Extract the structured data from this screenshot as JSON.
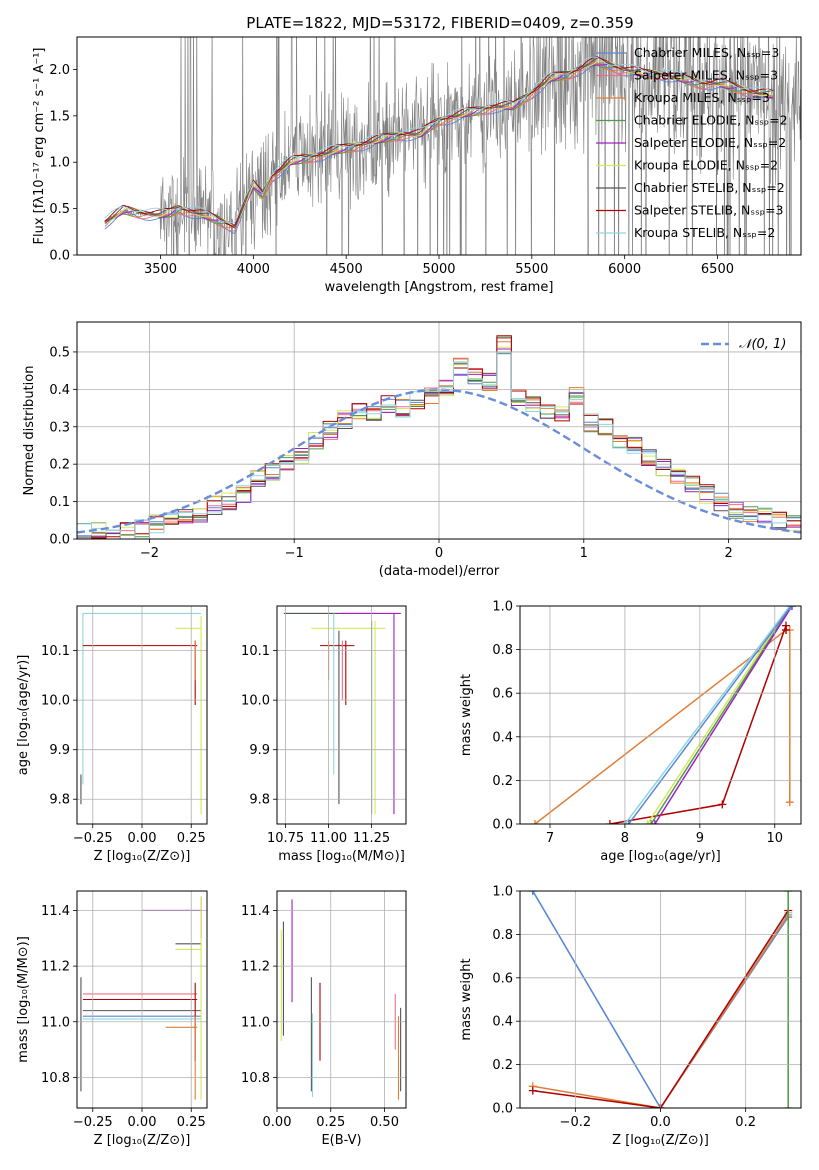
{
  "title": "PLATE=1822, MJD=53172, FIBERID=0409, z=0.359",
  "colors": {
    "chabrier_miles": "#5b86d6",
    "salpeter_miles": "#ef6f8a",
    "kroupa_miles": "#e07f35",
    "chabrier_elodie": "#4f9a4f",
    "salpeter_elodie": "#a020c0",
    "kroupa_elodie": "#d6e85a",
    "chabrier_stelib": "#555555",
    "salpeter_stelib": "#b00000",
    "kroupa_stelib": "#8fd5df",
    "data": "#808080",
    "normal": "#6a8dd8"
  },
  "chart_data": [
    {
      "id": "spectrum",
      "type": "line",
      "xlabel": "wavelength [Angstrom, rest frame]",
      "ylabel": "Flux [fλ10⁻¹⁷ erg cm⁻² s⁻¹ A⁻¹]",
      "xlim": [
        3050,
        6950
      ],
      "ylim": [
        0,
        2.35
      ],
      "xticks": [
        "3500",
        "4000",
        "4500",
        "5000",
        "5500",
        "6000",
        "6500"
      ],
      "yticks": [
        "0.0",
        "0.5",
        "1.0",
        "1.5",
        "2.0"
      ],
      "legend_placement": "top-right",
      "continuum": {
        "x": [
          3200,
          3300,
          3400,
          3500,
          3550,
          3600,
          3700,
          3800,
          3900,
          4000,
          4050,
          4100,
          4200,
          4300,
          4400,
          4500,
          4600,
          4700,
          4800,
          4900,
          5000,
          5100,
          5200,
          5300,
          5400,
          5500,
          5600,
          5700,
          5800,
          5850,
          5900,
          6000,
          6100,
          6200,
          6300,
          6400,
          6500,
          6600,
          6700,
          6800
        ],
        "y": [
          0.35,
          0.48,
          0.45,
          0.43,
          0.45,
          0.5,
          0.45,
          0.38,
          0.3,
          0.75,
          0.65,
          0.85,
          1.0,
          1.05,
          1.1,
          1.15,
          1.2,
          1.25,
          1.3,
          1.3,
          1.45,
          1.5,
          1.55,
          1.6,
          1.6,
          1.75,
          1.9,
          1.95,
          2.05,
          2.08,
          2.05,
          2.0,
          1.95,
          1.95,
          1.9,
          1.85,
          1.85,
          1.8,
          1.75,
          1.72
        ]
      },
      "data_range": [
        3200,
        6950
      ],
      "series": [
        {
          "name": "Chabrier MILES, N_SSP=3",
          "key": "chabrier_miles"
        },
        {
          "name": "Salpeter MILES, N_SSP=3",
          "key": "salpeter_miles"
        },
        {
          "name": "Kroupa MILES, N_SSP=3",
          "key": "kroupa_miles"
        },
        {
          "name": "Chabrier ELODIE, N_SSP=2",
          "key": "chabrier_elodie"
        },
        {
          "name": "Salpeter ELODIE, N_SSP=2",
          "key": "salpeter_elodie"
        },
        {
          "name": "Kroupa ELODIE, N_SSP=2",
          "key": "kroupa_elodie"
        },
        {
          "name": "Chabrier STELIB, N_SSP=2",
          "key": "chabrier_stelib"
        },
        {
          "name": "Salpeter STELIB, N_SSP=3",
          "key": "salpeter_stelib"
        },
        {
          "name": "Kroupa STELIB, N_SSP=2",
          "key": "kroupa_stelib"
        }
      ]
    },
    {
      "id": "residuals",
      "type": "line",
      "xlabel": "(data-model)/error",
      "ylabel": "Normed distribution",
      "xlim": [
        -2.5,
        2.5
      ],
      "ylim": [
        0,
        0.58
      ],
      "xticks": [
        "−2",
        "−1",
        "0",
        "1",
        "2"
      ],
      "yticks": [
        "0.0",
        "0.1",
        "0.2",
        "0.3",
        "0.4",
        "0.5"
      ],
      "legend_placement": "top-right",
      "normal_label": "𝒩(0, 1)",
      "bin_edges": [
        -2.5,
        -2.4,
        -2.3,
        -2.2,
        -2.1,
        -2.0,
        -1.9,
        -1.8,
        -1.7,
        -1.6,
        -1.5,
        -1.4,
        -1.3,
        -1.2,
        -1.1,
        -1.0,
        -0.9,
        -0.8,
        -0.7,
        -0.6,
        -0.5,
        -0.4,
        -0.3,
        -0.2,
        -0.1,
        0.0,
        0.1,
        0.2,
        0.3,
        0.4,
        0.5,
        0.6,
        0.7,
        0.8,
        0.9,
        1.0,
        1.1,
        1.2,
        1.3,
        1.4,
        1.5,
        1.6,
        1.7,
        1.8,
        1.9,
        2.0,
        2.1,
        2.2,
        2.3,
        2.4,
        2.5
      ],
      "hist_base": [
        0.02,
        0.02,
        0.01,
        0.02,
        0.03,
        0.04,
        0.05,
        0.06,
        0.07,
        0.09,
        0.1,
        0.12,
        0.16,
        0.18,
        0.2,
        0.22,
        0.26,
        0.29,
        0.32,
        0.34,
        0.33,
        0.36,
        0.35,
        0.37,
        0.38,
        0.4,
        0.46,
        0.44,
        0.42,
        0.52,
        0.38,
        0.36,
        0.34,
        0.33,
        0.38,
        0.31,
        0.3,
        0.26,
        0.25,
        0.22,
        0.19,
        0.17,
        0.15,
        0.12,
        0.1,
        0.08,
        0.07,
        0.06,
        0.05,
        0.04
      ]
    },
    {
      "id": "age_vs_Z",
      "type": "scatter",
      "xlabel": "Z [log₁₀(Z/Z⊙)]",
      "ylabel": "age  [log₁₀(age/yr)]",
      "xlim": [
        -0.33,
        0.33
      ],
      "ylim": [
        9.75,
        10.19
      ],
      "xticks": [
        "−0.25",
        "0.00",
        "0.25"
      ],
      "yticks": [
        "9.8",
        "9.9",
        "10.0",
        "10.1"
      ],
      "segments": [
        {
          "key": "kroupa_stelib",
          "x": [
            -0.3,
            0.3
          ],
          "y": [
            10.175,
            10.175
          ]
        },
        {
          "key": "kroupa_stelib",
          "x": [
            -0.3,
            -0.3
          ],
          "y": [
            9.83,
            10.175
          ]
        },
        {
          "key": "chabrier_stelib",
          "x": [
            -0.31,
            -0.31
          ],
          "y": [
            9.79,
            9.85
          ]
        },
        {
          "key": "kroupa_elodie",
          "x": [
            0.17,
            0.3
          ],
          "y": [
            10.145,
            10.145
          ]
        },
        {
          "key": "kroupa_elodie",
          "x": [
            0.3,
            0.3
          ],
          "y": [
            9.77,
            10.17
          ]
        },
        {
          "key": "salpeter_stelib",
          "x": [
            -0.3,
            0.28
          ],
          "y": [
            10.11,
            10.11
          ]
        },
        {
          "key": "salpeter_stelib",
          "x": [
            0.27,
            0.27
          ],
          "y": [
            9.99,
            10.12
          ]
        },
        {
          "key": "kroupa_miles",
          "x": [
            0.27,
            0.27
          ],
          "y": [
            10.04,
            10.12
          ]
        }
      ]
    },
    {
      "id": "age_vs_mass",
      "type": "scatter",
      "xlabel": "mass [log₁₀(M/M⊙)]",
      "ylabel": "",
      "xlim": [
        10.7,
        11.45
      ],
      "ylim": [
        9.75,
        10.19
      ],
      "xticks": [
        "10.75",
        "11.00",
        "11.25"
      ],
      "yticks": [
        "9.8",
        "9.9",
        "10.0",
        "10.1"
      ],
      "segments": [
        {
          "key": "kroupa_stelib",
          "x": [
            10.74,
            11.06
          ],
          "y": [
            10.175,
            10.175
          ]
        },
        {
          "key": "chabrier_stelib",
          "x": [
            10.74,
            11.28
          ],
          "y": [
            10.175,
            10.175
          ]
        },
        {
          "key": "salpeter_elodie",
          "x": [
            11.06,
            11.42
          ],
          "y": [
            10.175,
            10.175
          ]
        },
        {
          "key": "salpeter_elodie",
          "x": [
            11.38,
            11.38
          ],
          "y": [
            9.77,
            10.175
          ]
        },
        {
          "key": "kroupa_elodie",
          "x": [
            10.9,
            11.33
          ],
          "y": [
            10.145,
            10.145
          ]
        },
        {
          "key": "kroupa_elodie",
          "x": [
            11.27,
            11.27
          ],
          "y": [
            9.77,
            10.16
          ]
        },
        {
          "key": "chabrier_elodie",
          "x": [
            11.25,
            11.25
          ],
          "y": [
            9.77,
            10.16
          ]
        },
        {
          "key": "salpeter_stelib",
          "x": [
            10.95,
            11.15
          ],
          "y": [
            10.11,
            10.11
          ]
        },
        {
          "key": "salpeter_stelib",
          "x": [
            11.1,
            11.1
          ],
          "y": [
            9.99,
            10.12
          ]
        },
        {
          "key": "kroupa_miles",
          "x": [
            11.0,
            11.0
          ],
          "y": [
            10.04,
            10.12
          ]
        },
        {
          "key": "salpeter_miles",
          "x": [
            11.08,
            11.08
          ],
          "y": [
            10.0,
            10.12
          ]
        },
        {
          "key": "kroupa_stelib",
          "x": [
            11.03,
            11.03
          ],
          "y": [
            9.85,
            10.175
          ]
        },
        {
          "key": "chabrier_stelib",
          "x": [
            11.06,
            11.06
          ],
          "y": [
            9.79,
            10.14
          ]
        }
      ]
    },
    {
      "id": "weight_vs_age",
      "type": "line",
      "xlabel": "age  [log₁₀(age/yr)]",
      "ylabel": "mass weight",
      "xlim": [
        6.6,
        10.35
      ],
      "ylim": [
        0,
        1.0
      ],
      "xticks": [
        "7",
        "8",
        "9",
        "10"
      ],
      "yticks": [
        "0.0",
        "0.2",
        "0.4",
        "0.6",
        "0.8",
        "1.0"
      ],
      "series": [
        {
          "key": "kroupa_miles",
          "x": [
            6.8,
            10.15,
            10.2,
            10.2
          ],
          "y": [
            0.0,
            0.89,
            0.89,
            0.1
          ]
        },
        {
          "key": "salpeter_stelib",
          "x": [
            7.8,
            9.3,
            10.15,
            10.15
          ],
          "y": [
            0.0,
            0.09,
            0.91,
            0.89
          ]
        },
        {
          "key": "kroupa_elodie",
          "x": [
            8.3,
            10.2
          ],
          "y": [
            0.0,
            1.0
          ]
        },
        {
          "key": "chabrier_elodie",
          "x": [
            8.35,
            10.22
          ],
          "y": [
            0.0,
            1.0
          ]
        },
        {
          "key": "salpeter_elodie",
          "x": [
            8.4,
            10.23
          ],
          "y": [
            0.0,
            1.0
          ]
        },
        {
          "key": "kroupa_stelib",
          "x": [
            8.0,
            10.2
          ],
          "y": [
            0.0,
            1.0
          ]
        },
        {
          "key": "chabrier_miles",
          "x": [
            8.05,
            10.22
          ],
          "y": [
            0.0,
            1.0
          ]
        }
      ]
    },
    {
      "id": "mass_vs_Z",
      "type": "scatter",
      "xlabel": "Z [log₁₀(Z/Z⊙)]",
      "ylabel": "mass [log₁₀(M/M⊙)]",
      "xlim": [
        -0.33,
        0.33
      ],
      "ylim": [
        10.69,
        11.47
      ],
      "xticks": [
        "−0.25",
        "0.00",
        "0.25"
      ],
      "yticks": [
        "10.8",
        "11.0",
        "11.2",
        "11.4"
      ],
      "segments": [
        {
          "key": "salpeter_elodie",
          "x": [
            0.0,
            0.3
          ],
          "y": [
            11.4,
            11.4
          ]
        },
        {
          "key": "salpeter_elodie",
          "x": [
            0.3,
            0.3
          ],
          "y": [
            11.3,
            11.45
          ]
        },
        {
          "key": "chabrier_stelib",
          "x": [
            0.17,
            0.3
          ],
          "y": [
            11.28,
            11.28
          ]
        },
        {
          "key": "kroupa_elodie",
          "x": [
            0.17,
            0.3
          ],
          "y": [
            11.26,
            11.26
          ]
        },
        {
          "key": "salpeter_miles",
          "x": [
            -0.3,
            0.28
          ],
          "y": [
            11.1,
            11.1
          ]
        },
        {
          "key": "salpeter_stelib",
          "x": [
            -0.3,
            0.28
          ],
          "y": [
            11.08,
            11.08
          ]
        },
        {
          "key": "chabrier_miles",
          "x": [
            -0.3,
            0.3
          ],
          "y": [
            11.02,
            11.02
          ]
        },
        {
          "key": "kroupa_stelib",
          "x": [
            -0.3,
            0.3
          ],
          "y": [
            11.01,
            11.01
          ]
        },
        {
          "key": "chabrier_stelib",
          "x": [
            -0.3,
            0.3
          ],
          "y": [
            11.04,
            11.04
          ]
        },
        {
          "key": "kroupa_miles",
          "x": [
            0.12,
            0.28
          ],
          "y": [
            10.98,
            10.98
          ]
        },
        {
          "key": "chabrier_stelib",
          "x": [
            -0.31,
            -0.31
          ],
          "y": [
            10.75,
            11.16
          ]
        },
        {
          "key": "salpeter_stelib",
          "x": [
            0.27,
            0.27
          ],
          "y": [
            10.86,
            11.14
          ]
        },
        {
          "key": "kroupa_miles",
          "x": [
            0.27,
            0.27
          ],
          "y": [
            10.72,
            11.02
          ]
        },
        {
          "key": "kroupa_elodie",
          "x": [
            0.3,
            0.3
          ],
          "y": [
            10.72,
            11.45
          ]
        }
      ]
    },
    {
      "id": "mass_vs_ebv",
      "type": "scatter",
      "xlabel": "E(B-V)",
      "ylabel": "",
      "xlim": [
        0.0,
        0.6
      ],
      "ylim": [
        10.69,
        11.47
      ],
      "xticks": [
        "0.00",
        "0.25",
        "0.50"
      ],
      "yticks": [
        "10.8",
        "11.0",
        "11.2",
        "11.4"
      ],
      "segments": [
        {
          "key": "kroupa_elodie",
          "x": [
            0.02,
            0.02
          ],
          "y": [
            10.93,
            11.33
          ]
        },
        {
          "key": "chabrier_stelib",
          "x": [
            0.03,
            0.03
          ],
          "y": [
            10.95,
            11.36
          ]
        },
        {
          "key": "salpeter_elodie",
          "x": [
            0.07,
            0.07
          ],
          "y": [
            11.07,
            11.44
          ]
        },
        {
          "key": "chabrier_stelib",
          "x": [
            0.16,
            0.16
          ],
          "y": [
            10.75,
            11.16
          ]
        },
        {
          "key": "kroupa_stelib",
          "x": [
            0.165,
            0.165
          ],
          "y": [
            10.73,
            11.03
          ]
        },
        {
          "key": "salpeter_stelib",
          "x": [
            0.2,
            0.2
          ],
          "y": [
            10.86,
            11.14
          ]
        },
        {
          "key": "salpeter_miles",
          "x": [
            0.55,
            0.55
          ],
          "y": [
            10.9,
            11.1
          ]
        },
        {
          "key": "kroupa_miles",
          "x": [
            0.565,
            0.565
          ],
          "y": [
            10.72,
            11.02
          ]
        },
        {
          "key": "chabrier_stelib",
          "x": [
            0.575,
            0.575
          ],
          "y": [
            10.75,
            11.05
          ]
        }
      ]
    },
    {
      "id": "weight_vs_Z",
      "type": "line",
      "xlabel": "Z [log₁₀(Z/Z⊙)]",
      "ylabel": "mass weight",
      "xlim": [
        -0.33,
        0.33
      ],
      "ylim": [
        0,
        1.0
      ],
      "xticks": [
        "−0.2",
        "0.0",
        "0.2"
      ],
      "yticks": [
        "0.0",
        "0.2",
        "0.4",
        "0.6",
        "0.8",
        "1.0"
      ],
      "series": [
        {
          "key": "kroupa_stelib",
          "x": [
            -0.3,
            0.0,
            0.3
          ],
          "y": [
            1.0,
            0.0,
            0.9
          ]
        },
        {
          "key": "chabrier_miles",
          "x": [
            -0.3,
            0.0,
            0.3
          ],
          "y": [
            1.0,
            0.0,
            0.88
          ]
        },
        {
          "key": "kroupa_miles",
          "x": [
            -0.3,
            0.0,
            0.3
          ],
          "y": [
            0.1,
            0.0,
            0.89
          ]
        },
        {
          "key": "salpeter_stelib",
          "x": [
            -0.3,
            0.0,
            0.3
          ],
          "y": [
            0.08,
            0.0,
            0.91
          ]
        },
        {
          "key": "kroupa_elodie",
          "x": [
            0.3,
            0.3
          ],
          "y": [
            0.0,
            1.0
          ]
        },
        {
          "key": "chabrier_elodie",
          "x": [
            0.3,
            0.3
          ],
          "y": [
            0.0,
            1.0
          ]
        }
      ]
    }
  ]
}
